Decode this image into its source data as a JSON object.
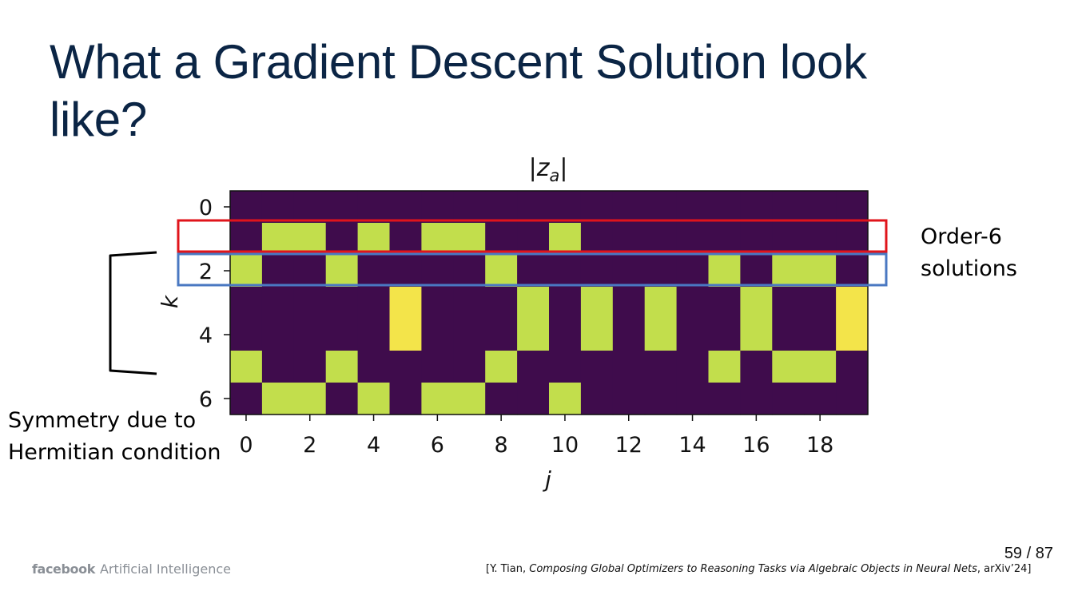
{
  "slide": {
    "title": "What a Gradient Descent Solution look like?"
  },
  "annotations": {
    "order_label_line1": "Order-6",
    "order_label_line2": "solutions",
    "symmetry_line1": "Symmetry due to",
    "symmetry_line2": "Hermitian condition",
    "order_box_top_color": "#e0141b",
    "order_box_bottom_color": "#4a78c2",
    "bracket_icon": "left-square-bracket"
  },
  "footer": {
    "logo_brand": "facebook",
    "logo_text": "Artificial Intelligence",
    "page_current": "59",
    "page_separator": "/",
    "page_total": "87",
    "citation_open": "[Y. Tian, ",
    "citation_title": "Composing Global Optimizers to Reasoning Tasks via Algebraic Objects in Neural Nets",
    "citation_close": ", arXiv’24]"
  },
  "chart_data": {
    "type": "heatmap",
    "title": "|z_a|",
    "xlabel": "j",
    "ylabel": "k",
    "x_ticks": [
      0,
      2,
      4,
      6,
      8,
      10,
      12,
      14,
      16,
      18
    ],
    "y_ticks": [
      0,
      2,
      4,
      6
    ],
    "n_cols": 20,
    "n_rows": 7,
    "colormap": "viridis",
    "colors": {
      "low": "#3f0c4c",
      "mid": "#c2de4c",
      "high": "#f3e44a"
    },
    "cells": [
      [
        0,
        0,
        0,
        0,
        0,
        0,
        0,
        0,
        0,
        0,
        0,
        0,
        0,
        0,
        0,
        0,
        0,
        0,
        0,
        0
      ],
      [
        0,
        1,
        1,
        0,
        1,
        0,
        1,
        1,
        0,
        0,
        1,
        0,
        0,
        0,
        0,
        0,
        0,
        0,
        0,
        0
      ],
      [
        1,
        0,
        0,
        1,
        0,
        0,
        0,
        0,
        1,
        0,
        0,
        0,
        0,
        0,
        0,
        1,
        0,
        1,
        1,
        0
      ],
      [
        0,
        0,
        0,
        0,
        0,
        1,
        0,
        0,
        0,
        1,
        0,
        1,
        0,
        1,
        0,
        0,
        1,
        0,
        0,
        1
      ],
      [
        0,
        0,
        0,
        0,
        0,
        1,
        0,
        0,
        0,
        1,
        0,
        1,
        0,
        1,
        0,
        0,
        1,
        0,
        0,
        1
      ],
      [
        1,
        0,
        0,
        1,
        0,
        0,
        0,
        0,
        1,
        0,
        0,
        0,
        0,
        0,
        0,
        1,
        0,
        1,
        1,
        0
      ],
      [
        0,
        1,
        1,
        0,
        1,
        0,
        1,
        1,
        0,
        0,
        1,
        0,
        0,
        0,
        0,
        0,
        0,
        0,
        0,
        0
      ]
    ]
  }
}
